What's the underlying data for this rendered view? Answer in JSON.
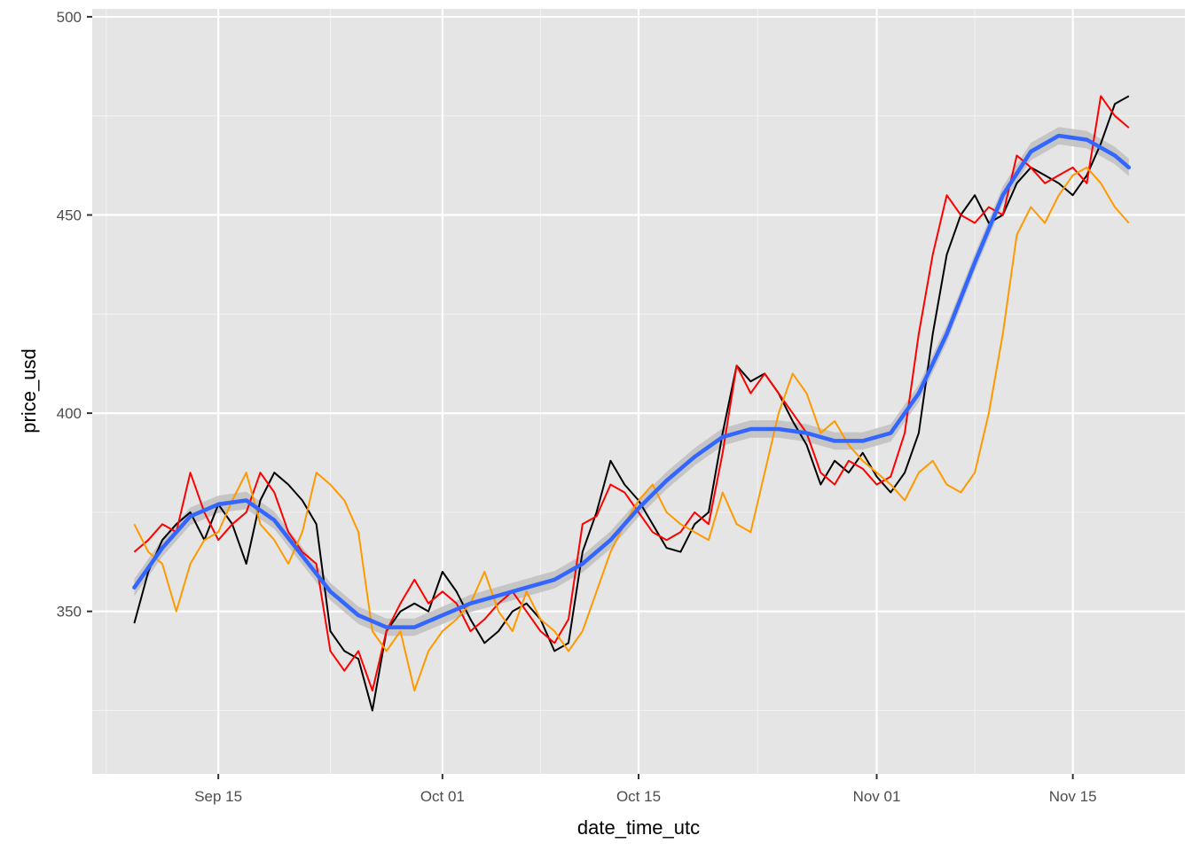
{
  "chart_data": {
    "type": "line",
    "title": "",
    "xlabel": "date_time_utc",
    "ylabel": "price_usd",
    "x_type": "date",
    "x_ticks": [
      {
        "date": "2014-09-15",
        "label": "Sep 15"
      },
      {
        "date": "2014-10-01",
        "label": "Oct 01"
      },
      {
        "date": "2014-10-15",
        "label": "Oct 15"
      },
      {
        "date": "2014-11-01",
        "label": "Nov 01"
      },
      {
        "date": "2014-11-15",
        "label": "Nov 15"
      }
    ],
    "y_ticks": [
      350,
      400,
      450,
      500
    ],
    "xlim": [
      "2014-09-06",
      "2014-11-23"
    ],
    "ylim": [
      309,
      502
    ],
    "grid": true,
    "legend": "none",
    "background": "#e5e5e5",
    "series": [
      {
        "color": "#000000",
        "points": [
          [
            "2014-09-09",
            347
          ],
          [
            "2014-09-10",
            360
          ],
          [
            "2014-09-11",
            368
          ],
          [
            "2014-09-12",
            372
          ],
          [
            "2014-09-13",
            375
          ],
          [
            "2014-09-14",
            368
          ],
          [
            "2014-09-15",
            377
          ],
          [
            "2014-09-16",
            372
          ],
          [
            "2014-09-17",
            362
          ],
          [
            "2014-09-18",
            378
          ],
          [
            "2014-09-19",
            385
          ],
          [
            "2014-09-20",
            382
          ],
          [
            "2014-09-21",
            378
          ],
          [
            "2014-09-22",
            372
          ],
          [
            "2014-09-23",
            345
          ],
          [
            "2014-09-24",
            340
          ],
          [
            "2014-09-25",
            338
          ],
          [
            "2014-09-26",
            325
          ],
          [
            "2014-09-27",
            345
          ],
          [
            "2014-09-28",
            350
          ],
          [
            "2014-09-29",
            352
          ],
          [
            "2014-09-30",
            350
          ],
          [
            "2014-10-01",
            360
          ],
          [
            "2014-10-02",
            355
          ],
          [
            "2014-10-03",
            348
          ],
          [
            "2014-10-04",
            342
          ],
          [
            "2014-10-05",
            345
          ],
          [
            "2014-10-06",
            350
          ],
          [
            "2014-10-07",
            352
          ],
          [
            "2014-10-08",
            348
          ],
          [
            "2014-10-09",
            340
          ],
          [
            "2014-10-10",
            342
          ],
          [
            "2014-10-11",
            365
          ],
          [
            "2014-10-12",
            375
          ],
          [
            "2014-10-13",
            388
          ],
          [
            "2014-10-14",
            382
          ],
          [
            "2014-10-15",
            378
          ],
          [
            "2014-10-16",
            372
          ],
          [
            "2014-10-17",
            366
          ],
          [
            "2014-10-18",
            365
          ],
          [
            "2014-10-19",
            372
          ],
          [
            "2014-10-20",
            375
          ],
          [
            "2014-10-21",
            395
          ],
          [
            "2014-10-22",
            412
          ],
          [
            "2014-10-23",
            408
          ],
          [
            "2014-10-24",
            410
          ],
          [
            "2014-10-25",
            405
          ],
          [
            "2014-10-26",
            398
          ],
          [
            "2014-10-27",
            392
          ],
          [
            "2014-10-28",
            382
          ],
          [
            "2014-10-29",
            388
          ],
          [
            "2014-10-30",
            385
          ],
          [
            "2014-10-31",
            390
          ],
          [
            "2014-11-01",
            384
          ],
          [
            "2014-11-02",
            380
          ],
          [
            "2014-11-03",
            385
          ],
          [
            "2014-11-04",
            395
          ],
          [
            "2014-11-05",
            420
          ],
          [
            "2014-11-06",
            440
          ],
          [
            "2014-11-07",
            450
          ],
          [
            "2014-11-08",
            455
          ],
          [
            "2014-11-09",
            448
          ],
          [
            "2014-11-10",
            450
          ],
          [
            "2014-11-11",
            458
          ],
          [
            "2014-11-12",
            462
          ],
          [
            "2014-11-13",
            460
          ],
          [
            "2014-11-14",
            458
          ],
          [
            "2014-11-15",
            455
          ],
          [
            "2014-11-16",
            460
          ],
          [
            "2014-11-17",
            468
          ],
          [
            "2014-11-18",
            478
          ],
          [
            "2014-11-19",
            480
          ]
        ]
      },
      {
        "color": "#ff0000",
        "points": [
          [
            "2014-09-09",
            365
          ],
          [
            "2014-09-10",
            368
          ],
          [
            "2014-09-11",
            372
          ],
          [
            "2014-09-12",
            370
          ],
          [
            "2014-09-13",
            385
          ],
          [
            "2014-09-14",
            375
          ],
          [
            "2014-09-15",
            368
          ],
          [
            "2014-09-16",
            372
          ],
          [
            "2014-09-17",
            375
          ],
          [
            "2014-09-18",
            385
          ],
          [
            "2014-09-19",
            380
          ],
          [
            "2014-09-20",
            370
          ],
          [
            "2014-09-21",
            365
          ],
          [
            "2014-09-22",
            362
          ],
          [
            "2014-09-23",
            340
          ],
          [
            "2014-09-24",
            335
          ],
          [
            "2014-09-25",
            340
          ],
          [
            "2014-09-26",
            330
          ],
          [
            "2014-09-27",
            345
          ],
          [
            "2014-09-28",
            352
          ],
          [
            "2014-09-29",
            358
          ],
          [
            "2014-09-30",
            352
          ],
          [
            "2014-10-01",
            355
          ],
          [
            "2014-10-02",
            352
          ],
          [
            "2014-10-03",
            345
          ],
          [
            "2014-10-04",
            348
          ],
          [
            "2014-10-05",
            352
          ],
          [
            "2014-10-06",
            355
          ],
          [
            "2014-10-07",
            350
          ],
          [
            "2014-10-08",
            345
          ],
          [
            "2014-10-09",
            342
          ],
          [
            "2014-10-10",
            348
          ],
          [
            "2014-10-11",
            372
          ],
          [
            "2014-10-12",
            374
          ],
          [
            "2014-10-13",
            382
          ],
          [
            "2014-10-14",
            380
          ],
          [
            "2014-10-15",
            375
          ],
          [
            "2014-10-16",
            370
          ],
          [
            "2014-10-17",
            368
          ],
          [
            "2014-10-18",
            370
          ],
          [
            "2014-10-19",
            375
          ],
          [
            "2014-10-20",
            372
          ],
          [
            "2014-10-21",
            390
          ],
          [
            "2014-10-22",
            412
          ],
          [
            "2014-10-23",
            405
          ],
          [
            "2014-10-24",
            410
          ],
          [
            "2014-10-25",
            405
          ],
          [
            "2014-10-26",
            400
          ],
          [
            "2014-10-27",
            395
          ],
          [
            "2014-10-28",
            385
          ],
          [
            "2014-10-29",
            382
          ],
          [
            "2014-10-30",
            388
          ],
          [
            "2014-10-31",
            386
          ],
          [
            "2014-11-01",
            382
          ],
          [
            "2014-11-02",
            384
          ],
          [
            "2014-11-03",
            395
          ],
          [
            "2014-11-04",
            420
          ],
          [
            "2014-11-05",
            440
          ],
          [
            "2014-11-06",
            455
          ],
          [
            "2014-11-07",
            450
          ],
          [
            "2014-11-08",
            448
          ],
          [
            "2014-11-09",
            452
          ],
          [
            "2014-11-10",
            450
          ],
          [
            "2014-11-11",
            465
          ],
          [
            "2014-11-12",
            462
          ],
          [
            "2014-11-13",
            458
          ],
          [
            "2014-11-14",
            460
          ],
          [
            "2014-11-15",
            462
          ],
          [
            "2014-11-16",
            458
          ],
          [
            "2014-11-17",
            480
          ],
          [
            "2014-11-18",
            475
          ],
          [
            "2014-11-19",
            472
          ]
        ]
      },
      {
        "color": "#ff9900",
        "points": [
          [
            "2014-09-09",
            372
          ],
          [
            "2014-09-10",
            365
          ],
          [
            "2014-09-11",
            362
          ],
          [
            "2014-09-12",
            350
          ],
          [
            "2014-09-13",
            362
          ],
          [
            "2014-09-14",
            368
          ],
          [
            "2014-09-15",
            370
          ],
          [
            "2014-09-16",
            378
          ],
          [
            "2014-09-17",
            385
          ],
          [
            "2014-09-18",
            372
          ],
          [
            "2014-09-19",
            368
          ],
          [
            "2014-09-20",
            362
          ],
          [
            "2014-09-21",
            370
          ],
          [
            "2014-09-22",
            385
          ],
          [
            "2014-09-23",
            382
          ],
          [
            "2014-09-24",
            378
          ],
          [
            "2014-09-25",
            370
          ],
          [
            "2014-09-26",
            345
          ],
          [
            "2014-09-27",
            340
          ],
          [
            "2014-09-28",
            345
          ],
          [
            "2014-09-29",
            330
          ],
          [
            "2014-09-30",
            340
          ],
          [
            "2014-10-01",
            345
          ],
          [
            "2014-10-02",
            348
          ],
          [
            "2014-10-03",
            352
          ],
          [
            "2014-10-04",
            360
          ],
          [
            "2014-10-05",
            350
          ],
          [
            "2014-10-06",
            345
          ],
          [
            "2014-10-07",
            355
          ],
          [
            "2014-10-08",
            348
          ],
          [
            "2014-10-09",
            345
          ],
          [
            "2014-10-10",
            340
          ],
          [
            "2014-10-11",
            345
          ],
          [
            "2014-10-12",
            355
          ],
          [
            "2014-10-13",
            365
          ],
          [
            "2014-10-14",
            372
          ],
          [
            "2014-10-15",
            378
          ],
          [
            "2014-10-16",
            382
          ],
          [
            "2014-10-17",
            375
          ],
          [
            "2014-10-18",
            372
          ],
          [
            "2014-10-19",
            370
          ],
          [
            "2014-10-20",
            368
          ],
          [
            "2014-10-21",
            380
          ],
          [
            "2014-10-22",
            372
          ],
          [
            "2014-10-23",
            370
          ],
          [
            "2014-10-24",
            385
          ],
          [
            "2014-10-25",
            400
          ],
          [
            "2014-10-26",
            410
          ],
          [
            "2014-10-27",
            405
          ],
          [
            "2014-10-28",
            395
          ],
          [
            "2014-10-29",
            398
          ],
          [
            "2014-10-30",
            392
          ],
          [
            "2014-10-31",
            388
          ],
          [
            "2014-11-01",
            385
          ],
          [
            "2014-11-02",
            382
          ],
          [
            "2014-11-03",
            378
          ],
          [
            "2014-11-04",
            385
          ],
          [
            "2014-11-05",
            388
          ],
          [
            "2014-11-06",
            382
          ],
          [
            "2014-11-07",
            380
          ],
          [
            "2014-11-08",
            385
          ],
          [
            "2014-11-09",
            400
          ],
          [
            "2014-11-10",
            420
          ],
          [
            "2014-11-11",
            445
          ],
          [
            "2014-11-12",
            452
          ],
          [
            "2014-11-13",
            448
          ],
          [
            "2014-11-14",
            455
          ],
          [
            "2014-11-15",
            460
          ],
          [
            "2014-11-16",
            462
          ],
          [
            "2014-11-17",
            458
          ],
          [
            "2014-11-18",
            452
          ],
          [
            "2014-11-19",
            448
          ]
        ]
      }
    ],
    "smooth": {
      "color": "#3366ff",
      "band_color": "#bfbfbf",
      "points": [
        [
          "2014-09-09",
          356
        ],
        [
          "2014-09-11",
          366
        ],
        [
          "2014-09-13",
          374
        ],
        [
          "2014-09-15",
          377
        ],
        [
          "2014-09-17",
          378
        ],
        [
          "2014-09-19",
          373
        ],
        [
          "2014-09-21",
          364
        ],
        [
          "2014-09-23",
          355
        ],
        [
          "2014-09-25",
          349
        ],
        [
          "2014-09-27",
          346
        ],
        [
          "2014-09-29",
          346
        ],
        [
          "2014-10-01",
          349
        ],
        [
          "2014-10-03",
          352
        ],
        [
          "2014-10-05",
          354
        ],
        [
          "2014-10-07",
          356
        ],
        [
          "2014-10-09",
          358
        ],
        [
          "2014-10-11",
          362
        ],
        [
          "2014-10-13",
          368
        ],
        [
          "2014-10-15",
          376
        ],
        [
          "2014-10-17",
          383
        ],
        [
          "2014-10-19",
          389
        ],
        [
          "2014-10-21",
          394
        ],
        [
          "2014-10-23",
          396
        ],
        [
          "2014-10-25",
          396
        ],
        [
          "2014-10-27",
          395
        ],
        [
          "2014-10-29",
          393
        ],
        [
          "2014-10-31",
          393
        ],
        [
          "2014-11-02",
          395
        ],
        [
          "2014-11-04",
          405
        ],
        [
          "2014-11-06",
          420
        ],
        [
          "2014-11-08",
          438
        ],
        [
          "2014-11-10",
          455
        ],
        [
          "2014-11-12",
          466
        ],
        [
          "2014-11-14",
          470
        ],
        [
          "2014-11-16",
          469
        ],
        [
          "2014-11-18",
          465
        ],
        [
          "2014-11-19",
          462
        ]
      ]
    }
  }
}
